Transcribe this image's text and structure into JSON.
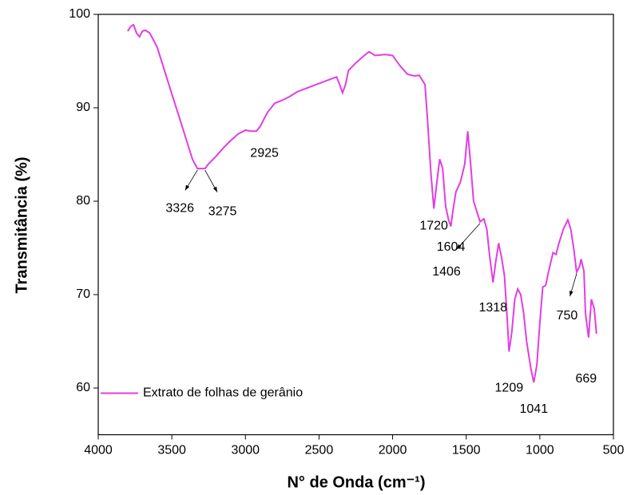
{
  "chart_data": {
    "type": "line",
    "xlabel": "N° de Onda (cm⁻¹)",
    "ylabel": "Transmitância (%)",
    "xlim": [
      4000,
      500
    ],
    "ylim": [
      55,
      100
    ],
    "xticks": [
      4000,
      3500,
      3000,
      2500,
      2000,
      1500,
      1000,
      500
    ],
    "yticks": [
      60,
      70,
      80,
      90,
      100
    ],
    "legend": "lower left",
    "x": [
      3800,
      3780,
      3760,
      3740,
      3720,
      3700,
      3680,
      3650,
      3600,
      3550,
      3500,
      3450,
      3400,
      3360,
      3326,
      3300,
      3275,
      3250,
      3200,
      3150,
      3100,
      3050,
      3000,
      2960,
      2925,
      2900,
      2850,
      2800,
      2750,
      2700,
      2650,
      2600,
      2500,
      2400,
      2380,
      2360,
      2340,
      2320,
      2300,
      2250,
      2200,
      2160,
      2120,
      2050,
      2000,
      1950,
      1900,
      1850,
      1820,
      1780,
      1760,
      1740,
      1720,
      1700,
      1680,
      1660,
      1640,
      1620,
      1604,
      1590,
      1570,
      1540,
      1510,
      1490,
      1470,
      1450,
      1430,
      1406,
      1380,
      1360,
      1340,
      1318,
      1300,
      1280,
      1260,
      1240,
      1220,
      1209,
      1190,
      1170,
      1150,
      1130,
      1110,
      1090,
      1060,
      1041,
      1020,
      1000,
      980,
      960,
      940,
      910,
      890,
      870,
      840,
      810,
      790,
      770,
      750,
      730,
      720,
      700,
      690,
      669,
      650,
      630,
      615
    ],
    "series": [
      {
        "name": "Extrato de folhas de gerânio",
        "color": "#e23de2",
        "values": [
          98.2,
          98.7,
          98.9,
          98.0,
          97.6,
          98.2,
          98.3,
          98.0,
          96.5,
          94.0,
          91.5,
          89.0,
          86.5,
          84.5,
          83.5,
          83.5,
          83.5,
          84.0,
          84.8,
          85.7,
          86.5,
          87.2,
          87.6,
          87.5,
          87.5,
          88.0,
          89.5,
          90.5,
          90.8,
          91.2,
          91.7,
          92.0,
          92.6,
          93.2,
          93.3,
          92.5,
          91.6,
          92.5,
          94.0,
          94.8,
          95.5,
          96.0,
          95.6,
          95.7,
          95.6,
          94.5,
          93.6,
          93.4,
          93.5,
          92.5,
          88.0,
          83.0,
          79.2,
          82.0,
          84.5,
          83.5,
          79.5,
          78.0,
          77.3,
          79.0,
          81.0,
          82.0,
          84.0,
          87.5,
          84.0,
          80.0,
          79.0,
          77.8,
          78.1,
          77.0,
          74.0,
          71.3,
          73.5,
          75.5,
          74.0,
          72.0,
          67.0,
          63.9,
          66.0,
          69.5,
          70.6,
          70.0,
          68.0,
          65.0,
          62.0,
          60.6,
          62.5,
          67.0,
          70.8,
          71.0,
          72.5,
          74.5,
          74.3,
          75.5,
          77.0,
          78.0,
          77.0,
          75.0,
          72.4,
          73.0,
          73.8,
          72.5,
          68.0,
          65.4,
          69.5,
          68.5,
          65.8
        ]
      }
    ],
    "annotations": [
      3326,
      3275,
      2925,
      1720,
      1604,
      1406,
      1318,
      1209,
      1041,
      750,
      669
    ]
  }
}
